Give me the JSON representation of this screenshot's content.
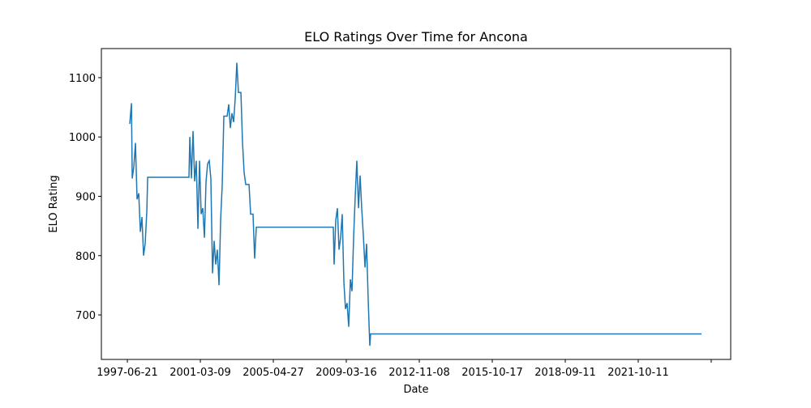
{
  "chart_data": {
    "type": "line",
    "title": "ELO Ratings Over Time for Ancona",
    "x_label": "Date",
    "y_label": "ELO Rating",
    "x": [
      33,
      56,
      67,
      89,
      111,
      133,
      156,
      178,
      200,
      222,
      244,
      267,
      278,
      844,
      856,
      878,
      900,
      922,
      944,
      967,
      989,
      1011,
      1033,
      1056,
      1078,
      1100,
      1122,
      1144,
      1167,
      1189,
      1211,
      1233,
      1256,
      1278,
      1300,
      1322,
      1367,
      1389,
      1411,
      1433,
      1456,
      1478,
      1500,
      1522,
      1556,
      1578,
      1600,
      1622,
      1667,
      1689,
      1722,
      1744,
      1767,
      2822,
      2833,
      2856,
      2878,
      2900,
      2922,
      2944,
      2967,
      2989,
      3011,
      3033,
      3056,
      3078,
      3100,
      3122,
      3144,
      3167,
      3189,
      3211,
      3233,
      3256,
      3278,
      3300,
      3322,
      3333,
      7867
    ],
    "series": [
      {
        "name": "ELO Rating",
        "color": "#1f77b4",
        "values": [
          1022,
          1057,
          930,
          950,
          990,
          895,
          905,
          840,
          865,
          800,
          820,
          875,
          932,
          932,
          1000,
          930,
          1010,
          925,
          960,
          845,
          960,
          870,
          880,
          830,
          925,
          955,
          960,
          930,
          770,
          825,
          785,
          810,
          750,
          860,
          920,
          1035,
          1035,
          1055,
          1015,
          1040,
          1025,
          1065,
          1125,
          1075,
          1075,
          990,
          940,
          920,
          920,
          870,
          870,
          795,
          848,
          848,
          785,
          860,
          880,
          810,
          830,
          870,
          755,
          710,
          720,
          680,
          760,
          740,
          830,
          900,
          960,
          880,
          935,
          880,
          835,
          780,
          820,
          725,
          648,
          668,
          668
        ]
      }
    ],
    "xlim": [
      -356,
      8267
    ],
    "xticks": [
      {
        "value": 0,
        "label": "1997-06-21"
      },
      {
        "value": 1000,
        "label": "2001-03-09"
      },
      {
        "value": 2000,
        "label": "2005-04-27"
      },
      {
        "value": 3000,
        "label": "2009-03-16"
      },
      {
        "value": 4000,
        "label": "2012-11-08"
      },
      {
        "value": 5000,
        "label": "2015-10-17"
      },
      {
        "value": 6000,
        "label": "2018-09-11"
      },
      {
        "value": 7000,
        "label": "2021-10-11"
      },
      {
        "value": 8000,
        "label": null
      }
    ],
    "ylim": [
      625,
      1149
    ],
    "yticks": [
      700,
      800,
      900,
      1000,
      1100
    ]
  }
}
